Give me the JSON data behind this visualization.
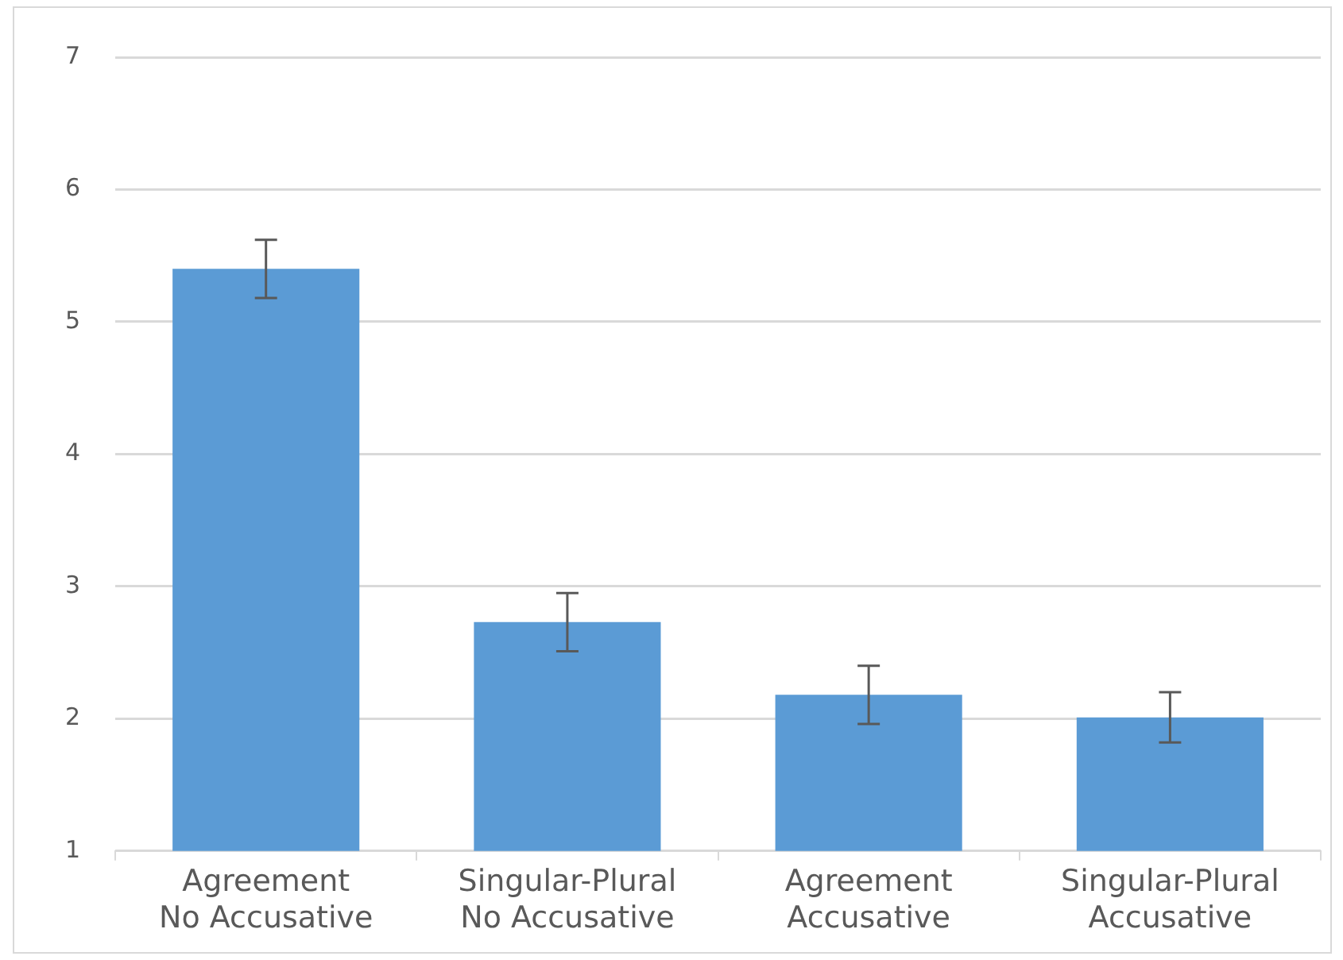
{
  "chart_data": {
    "type": "bar",
    "categories": [
      "Agreement\nNo Accusative",
      "Singular-Plural\nNo Accusative",
      "Agreement\nAccusative",
      "Singular-Plural\nAccusative"
    ],
    "values": [
      5.4,
      2.73,
      2.18,
      2.01
    ],
    "color": "#5b9bd5",
    "errors": [
      0.22,
      0.22,
      0.22,
      0.19
    ],
    "ylim": [
      1,
      7
    ],
    "yticks": [
      1,
      2,
      3,
      4,
      5,
      6,
      7
    ],
    "grid": "y",
    "legend": false
  }
}
